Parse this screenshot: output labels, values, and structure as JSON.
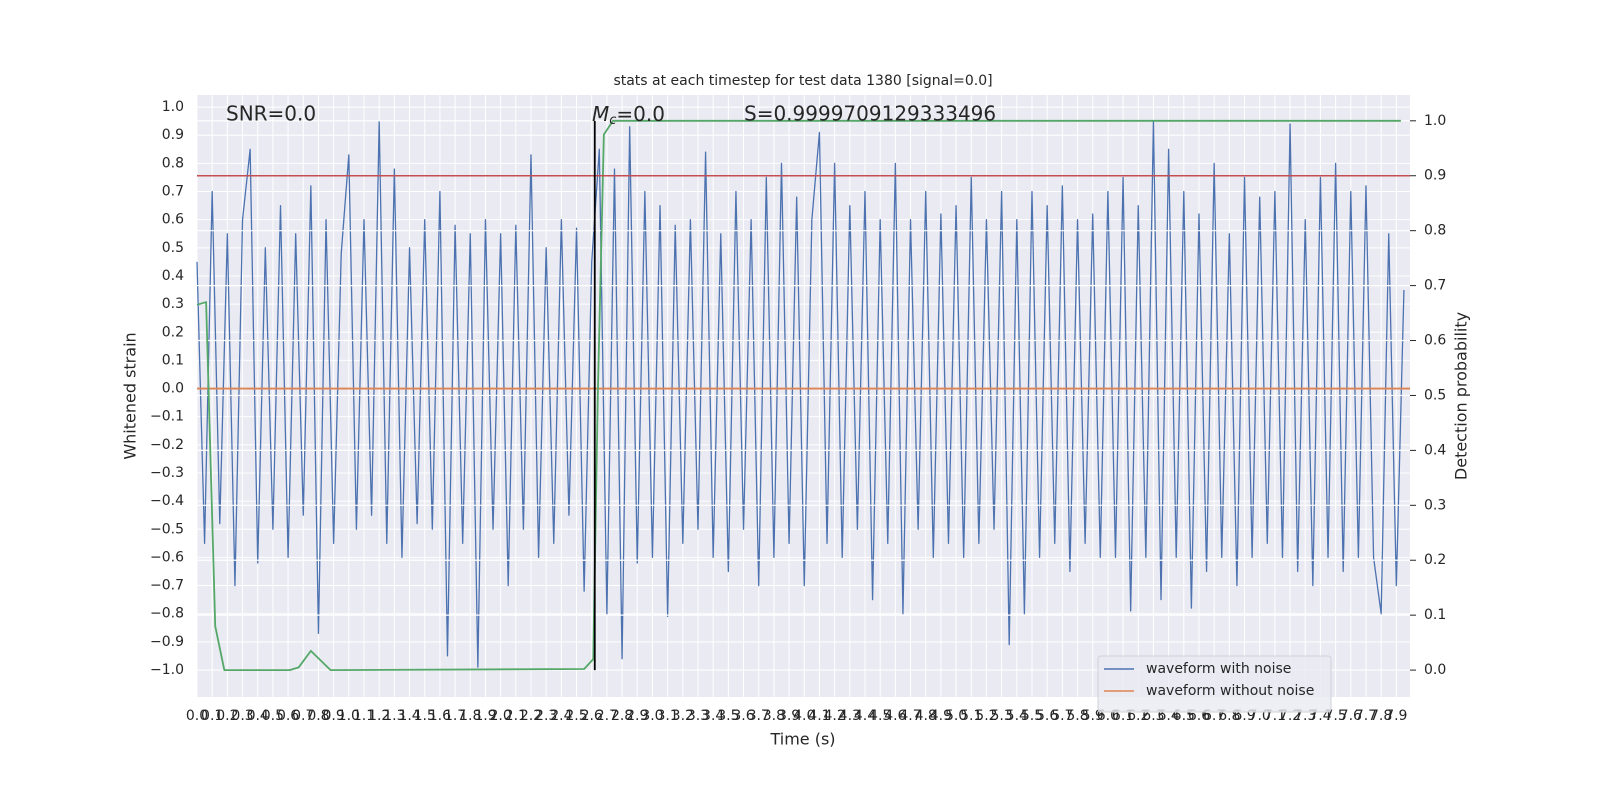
{
  "chart_data": {
    "type": "line",
    "title": "stats at each timestep for test data 1380 [signal=0.0]",
    "x_label": "Time (s)",
    "y_label": "Whitened strain",
    "y2_label": "Detection probability",
    "annotations": {
      "snr": "SNR=0.0",
      "mc": {
        "symbol": "M",
        "subscript": "c",
        "text": "=0.0"
      },
      "s": "S=0.9999709129333496"
    },
    "grid": true,
    "legend": "lower right",
    "xlim": [
      0,
      7.99
    ],
    "ylim": [
      -1.096,
      1.043
    ],
    "y2lim": [
      -0.049,
      1.047
    ],
    "xticks": [
      {
        "value": 0,
        "label": "0.0"
      },
      0.1,
      0.2,
      0.3,
      0.4,
      0.5,
      0.6,
      0.7,
      0.8,
      0.9,
      {
        "value": 1,
        "label": "1.0"
      },
      1.1,
      1.2,
      1.3,
      1.4,
      1.5,
      1.6,
      1.7,
      1.8,
      1.9,
      {
        "value": 2,
        "label": "2.0"
      },
      2.1,
      2.2,
      2.3,
      2.4,
      2.5,
      2.6,
      2.7,
      2.8,
      2.9,
      {
        "value": 3,
        "label": "3.0"
      },
      3.1,
      3.2,
      3.3,
      3.4,
      3.5,
      3.6,
      3.7,
      3.8,
      3.9,
      {
        "value": 4,
        "label": "4.0"
      },
      4.1,
      4.2,
      4.3,
      4.4,
      4.5,
      4.6,
      4.7,
      4.8,
      4.9,
      {
        "value": 5,
        "label": "5.0"
      },
      5.1,
      5.2,
      5.3,
      5.4,
      5.5,
      5.6,
      5.7,
      5.8,
      5.9,
      {
        "value": 6,
        "label": "6.0"
      },
      6.1,
      6.2,
      6.3,
      6.4,
      6.5,
      6.6,
      6.7,
      6.8,
      6.9,
      {
        "value": 7,
        "label": "7.0"
      },
      7.1,
      7.2,
      7.3,
      7.4,
      7.5,
      7.6,
      7.7,
      7.8,
      7.9
    ],
    "yticks": [
      {
        "value": -1,
        "label": "−1.0"
      },
      {
        "value": -0.9,
        "label": "−0.9"
      },
      {
        "value": -0.8,
        "label": "−0.8"
      },
      {
        "value": -0.7,
        "label": "−0.7"
      },
      {
        "value": -0.6,
        "label": "−0.6"
      },
      {
        "value": -0.5,
        "label": "−0.5"
      },
      {
        "value": -0.4,
        "label": "−0.4"
      },
      {
        "value": -0.3,
        "label": "−0.3"
      },
      {
        "value": -0.2,
        "label": "−0.2"
      },
      {
        "value": -0.1,
        "label": "−0.1"
      },
      {
        "value": 0,
        "label": "0.0"
      },
      0.1,
      0.2,
      0.3,
      0.4,
      0.5,
      0.6,
      0.7,
      0.8,
      0.9,
      {
        "value": 1,
        "label": "1.0"
      }
    ],
    "y2ticks": [
      {
        "value": 0,
        "label": "0.0"
      },
      0.1,
      0.2,
      0.3,
      0.4,
      0.5,
      0.6,
      0.7,
      0.8,
      0.9,
      {
        "value": 1,
        "label": "1.0"
      }
    ],
    "series": [
      {
        "name": "waveform with noise",
        "color": "#4c72b0",
        "x": [
          0,
          0.05,
          0.1,
          0.15,
          0.2,
          0.25,
          0.3,
          0.35,
          0.4,
          0.45,
          0.5,
          0.55,
          0.6,
          0.65,
          0.7,
          0.75,
          0.8,
          0.85,
          0.9,
          0.95,
          1,
          1.05,
          1.1,
          1.15,
          1.2,
          1.25,
          1.3,
          1.35,
          1.4,
          1.45,
          1.5,
          1.55,
          1.6,
          1.65,
          1.7,
          1.75,
          1.8,
          1.85,
          1.9,
          1.95,
          2,
          2.05,
          2.1,
          2.15,
          2.2,
          2.25,
          2.3,
          2.35,
          2.4,
          2.45,
          2.5,
          2.55,
          2.6,
          2.65,
          2.7,
          2.75,
          2.8,
          2.85,
          2.9,
          2.95,
          3,
          3.05,
          3.1,
          3.15,
          3.2,
          3.25,
          3.3,
          3.35,
          3.4,
          3.45,
          3.5,
          3.55,
          3.6,
          3.65,
          3.7,
          3.75,
          3.8,
          3.85,
          3.9,
          3.95,
          4,
          4.05,
          4.1,
          4.15,
          4.2,
          4.25,
          4.3,
          4.35,
          4.4,
          4.45,
          4.5,
          4.55,
          4.6,
          4.65,
          4.7,
          4.75,
          4.8,
          4.85,
          4.9,
          4.95,
          5,
          5.05,
          5.1,
          5.15,
          5.2,
          5.25,
          5.3,
          5.35,
          5.4,
          5.45,
          5.5,
          5.55,
          5.6,
          5.65,
          5.7,
          5.75,
          5.8,
          5.85,
          5.9,
          5.95,
          6,
          6.05,
          6.1,
          6.15,
          6.2,
          6.25,
          6.3,
          6.35,
          6.4,
          6.45,
          6.5,
          6.55,
          6.6,
          6.65,
          6.7,
          6.75,
          6.8,
          6.85,
          6.9,
          6.95,
          7,
          7.05,
          7.1,
          7.15,
          7.2,
          7.25,
          7.3,
          7.35,
          7.4,
          7.45,
          7.5,
          7.55,
          7.6,
          7.65,
          7.7,
          7.75,
          7.8,
          7.85,
          7.9,
          7.95
        ],
        "values": [
          0.45,
          -0.55,
          0.7,
          -0.48,
          0.55,
          -0.7,
          0.6,
          0.85,
          -0.62,
          0.5,
          -0.5,
          0.65,
          -0.6,
          0.55,
          -0.45,
          0.72,
          -0.87,
          0.6,
          -0.55,
          0.48,
          0.83,
          -0.5,
          0.6,
          -0.45,
          0.95,
          -0.55,
          0.78,
          -0.6,
          0.5,
          -0.48,
          0.6,
          -0.5,
          0.7,
          -0.95,
          0.58,
          -0.55,
          0.55,
          -0.99,
          0.6,
          -0.5,
          0.55,
          -0.7,
          0.58,
          -0.5,
          0.83,
          -0.6,
          0.5,
          -0.55,
          0.6,
          -0.45,
          0.57,
          -0.72,
          0.45,
          0.85,
          -0.8,
          0.78,
          -0.96,
          0.93,
          -0.62,
          0.7,
          -0.6,
          0.65,
          -0.81,
          0.58,
          -0.55,
          0.6,
          -0.5,
          0.84,
          -0.6,
          0.55,
          -0.65,
          0.7,
          -0.5,
          0.6,
          -0.7,
          0.75,
          -0.6,
          0.8,
          -0.55,
          0.68,
          -0.7,
          0.6,
          0.91,
          -0.55,
          0.8,
          -0.6,
          0.65,
          -0.5,
          0.7,
          -0.75,
          0.6,
          -0.55,
          0.8,
          -0.8,
          0.6,
          -0.5,
          0.7,
          -0.6,
          0.62,
          -0.55,
          0.65,
          -0.6,
          0.75,
          -0.55,
          0.6,
          -0.5,
          0.7,
          -0.91,
          0.6,
          -0.8,
          0.7,
          -0.6,
          0.65,
          -0.55,
          0.72,
          -0.65,
          0.6,
          -0.55,
          0.62,
          -0.6,
          0.7,
          -0.6,
          0.75,
          -0.79,
          0.65,
          -0.6,
          0.95,
          -0.75,
          0.85,
          -0.6,
          0.7,
          -0.78,
          0.62,
          -0.65,
          0.8,
          -0.6,
          0.55,
          -0.7,
          0.75,
          -0.6,
          0.68,
          -0.55,
          0.7,
          -0.6,
          0.94,
          -0.65,
          0.6,
          -0.7,
          0.75,
          -0.6,
          0.8,
          -0.65,
          0.7,
          -0.6,
          0.72,
          -0.6,
          -0.8,
          0.55,
          -0.7,
          0.35
        ]
      },
      {
        "name": "waveform without noise",
        "color": "#dd8452",
        "x": [
          0,
          7.99
        ],
        "values": [
          0,
          0
        ]
      },
      {
        "axis": "y2",
        "color": "#55a868",
        "x": [
          0,
          0.06,
          0.12,
          0.18,
          0.61,
          0.67,
          0.75,
          0.88,
          2.55,
          2.61,
          2.64,
          2.68,
          2.74,
          7.93
        ],
        "values": [
          0.665,
          0.67,
          0.08,
          0,
          0,
          0.005,
          0.035,
          0,
          0.002,
          0.02,
          0.5,
          0.975,
          1,
          1
        ]
      }
    ],
    "threshold": {
      "value": 0.9,
      "axis": "y2",
      "color": "#c44e52"
    },
    "marker_time": {
      "value": 2.62,
      "color": "#000000"
    }
  }
}
